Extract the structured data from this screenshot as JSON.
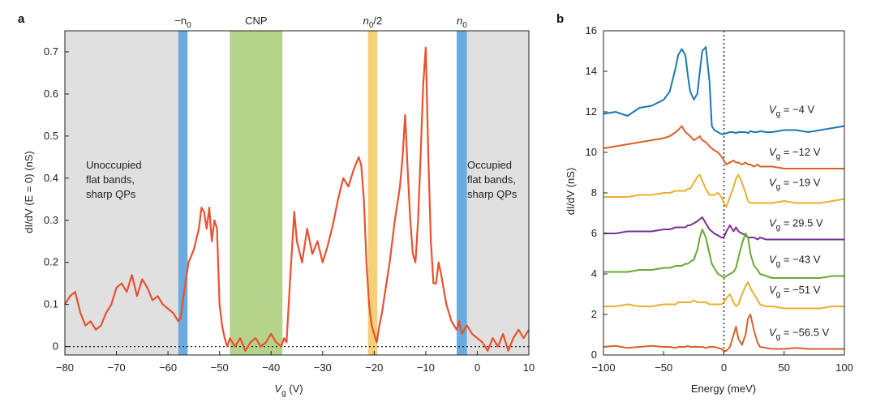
{
  "chart_data": [
    {
      "type": "line",
      "panel": "a",
      "xlabel_main": "V",
      "xlabel_sub": "g",
      "xlabel_unit": " (V)",
      "ylabel": "dI/dV (E = 0) (nS)",
      "xlim": [
        -80,
        10
      ],
      "ylim": [
        -0.02,
        0.75
      ],
      "xticks": [
        -80,
        -70,
        -60,
        -50,
        -40,
        -30,
        -20,
        -10,
        0,
        10
      ],
      "xtick_labels": [
        "−80",
        "−70",
        "−60",
        "−50",
        "−40",
        "−30",
        "−20",
        "−10",
        "0",
        "10"
      ],
      "yticks": [
        0,
        0.1,
        0.2,
        0.3,
        0.4,
        0.5,
        0.6,
        0.7
      ],
      "ytick_labels": [
        "0",
        "0.1",
        "0.2",
        "0.3",
        "0.4",
        "0.5",
        "0.6",
        "0.7"
      ],
      "colors": {
        "line": "#e8512f",
        "grey": "#e0e0e0",
        "blue": "#6aace0",
        "green": "#b5d28a",
        "orange": "#f5cf7a"
      },
      "regions": [
        {
          "name": "unoccupied",
          "x0": -80,
          "x1": -58,
          "color": "#e0e0e0"
        },
        {
          "name": "occupied",
          "x0": -2,
          "x1": 10,
          "color": "#e0e0e0"
        },
        {
          "name": "minus-n0",
          "x0": -58,
          "x1": -56.2,
          "color": "#6aace0"
        },
        {
          "name": "cnp",
          "x0": -48,
          "x1": -37.8,
          "color": "#b5d28a"
        },
        {
          "name": "half-n0",
          "x0": -21.2,
          "x1": -19.4,
          "color": "#f5cf7a"
        },
        {
          "name": "n0",
          "x0": -4,
          "x1": -2,
          "color": "#6aace0"
        }
      ],
      "band_labels": {
        "minus_n0_prefix": "−n",
        "minus_n0_sub": "0",
        "cnp": "CNP",
        "half_n0_main": "n",
        "half_n0_sub": "0",
        "half_n0_suffix": "/2",
        "n0_main": "n",
        "n0_sub": "0"
      },
      "annotations": {
        "left_line1": "Unoccupied",
        "left_line2": "flat bands,",
        "left_line3": "sharp QPs",
        "right_line1": "Occupied",
        "right_line2": "flat bands,",
        "right_line3": "sharp QPs"
      },
      "series_x": [
        -80,
        -79,
        -78,
        -77,
        -76,
        -75,
        -74,
        -73,
        -72,
        -71,
        -70,
        -69,
        -68,
        -67,
        -66,
        -65,
        -64,
        -63,
        -62,
        -61,
        -60,
        -59,
        -58,
        -57.5,
        -57,
        -56,
        -55,
        -54,
        -53.5,
        -53,
        -52.5,
        -52,
        -51.5,
        -51,
        -50.5,
        -50,
        -49.5,
        -49,
        -48.5,
        -48,
        -47,
        -46,
        -45,
        -44,
        -43,
        -42,
        -41,
        -40,
        -39,
        -38,
        -37.5,
        -37,
        -36.5,
        -36,
        -35.5,
        -35,
        -34,
        -33,
        -32,
        -31,
        -30,
        -29,
        -28,
        -27,
        -26,
        -25,
        -24,
        -23,
        -22.5,
        -22,
        -21.5,
        -21,
        -20.5,
        -20,
        -19.5,
        -19,
        -18.5,
        -18,
        -17,
        -16,
        -15,
        -14.5,
        -14,
        -13.5,
        -13,
        -12.5,
        -12,
        -11.5,
        -11,
        -10.5,
        -10,
        -9.5,
        -9,
        -8.5,
        -8,
        -7.5,
        -7,
        -6,
        -5,
        -4.5,
        -4,
        -3.5,
        -3,
        -2.5,
        -2,
        -1,
        0,
        1,
        2,
        3,
        4,
        5,
        6,
        7,
        8,
        9,
        10
      ],
      "series_y": [
        0.1,
        0.12,
        0.13,
        0.08,
        0.05,
        0.06,
        0.04,
        0.05,
        0.08,
        0.1,
        0.14,
        0.15,
        0.13,
        0.17,
        0.12,
        0.16,
        0.14,
        0.11,
        0.12,
        0.1,
        0.09,
        0.08,
        0.06,
        0.07,
        0.12,
        0.2,
        0.23,
        0.28,
        0.33,
        0.32,
        0.28,
        0.33,
        0.25,
        0.3,
        0.28,
        0.1,
        0.05,
        0.02,
        0.0,
        0.02,
        0.0,
        0.02,
        -0.01,
        0.01,
        0.02,
        0.0,
        0.01,
        0.03,
        0.01,
        0.0,
        0.02,
        0.01,
        0.12,
        0.22,
        0.32,
        0.25,
        0.2,
        0.28,
        0.22,
        0.25,
        0.2,
        0.24,
        0.29,
        0.35,
        0.4,
        0.38,
        0.42,
        0.45,
        0.43,
        0.35,
        0.2,
        0.1,
        0.05,
        0.03,
        0.01,
        0.05,
        0.08,
        0.12,
        0.2,
        0.3,
        0.38,
        0.45,
        0.55,
        0.42,
        0.3,
        0.22,
        0.2,
        0.3,
        0.45,
        0.62,
        0.71,
        0.45,
        0.25,
        0.15,
        0.15,
        0.2,
        0.17,
        0.1,
        0.06,
        0.05,
        0.04,
        0.06,
        0.03,
        0.04,
        0.05,
        0.03,
        0.02,
        0.01,
        -0.01,
        0.02,
        0.0,
        0.03,
        -0.01,
        0.02,
        0.04,
        0.02,
        0.04
      ]
    },
    {
      "type": "line",
      "panel": "b",
      "xlabel": "Energy (meV)",
      "ylabel": "dI/dV (nS)",
      "xlim": [
        -100,
        100
      ],
      "ylim": [
        0,
        16
      ],
      "xticks": [
        -100,
        -50,
        0,
        50,
        100
      ],
      "xtick_labels": [
        "−100",
        "−50",
        "0",
        "50",
        "100"
      ],
      "yticks": [
        0,
        2,
        4,
        6,
        8,
        10,
        12,
        14,
        16
      ],
      "ytick_labels": [
        "0",
        "2",
        "4",
        "6",
        "8",
        "10",
        "12",
        "14",
        "16"
      ],
      "energy_x": [
        -100,
        -90,
        -80,
        -70,
        -60,
        -50,
        -45,
        -40,
        -38,
        -35,
        -32,
        -30,
        -28,
        -25,
        -22,
        -20,
        -18,
        -15,
        -12,
        -10,
        -8,
        -5,
        -2,
        0,
        2,
        5,
        8,
        10,
        12,
        15,
        18,
        20,
        22,
        25,
        28,
        30,
        35,
        40,
        50,
        60,
        70,
        80,
        90,
        100
      ],
      "series": [
        {
          "name": "Vg = −4 V",
          "label_main": "V",
          "label_sub": "g",
          "label_val": " = −4 V",
          "color": "#1f77b4",
          "values": [
            11.9,
            12.0,
            11.8,
            12.2,
            12.3,
            12.6,
            13.0,
            14.2,
            14.8,
            15.1,
            14.8,
            13.8,
            13.0,
            12.6,
            12.9,
            14.0,
            15.0,
            15.2,
            13.5,
            11.3,
            11.1,
            11.0,
            10.9,
            10.9,
            10.95,
            11.0,
            11.0,
            10.95,
            11.0,
            11.0,
            11.0,
            10.95,
            11.05,
            11.0,
            11.0,
            11.05,
            11.0,
            11.0,
            11.1,
            11.1,
            11.0,
            11.1,
            11.2,
            11.3
          ]
        },
        {
          "name": "Vg = −12 V",
          "label_main": "V",
          "label_sub": "g",
          "label_val": " = −12 V",
          "color": "#d9602b",
          "values": [
            10.2,
            10.3,
            10.4,
            10.5,
            10.6,
            10.7,
            10.8,
            11.0,
            11.1,
            11.3,
            11.0,
            10.9,
            10.8,
            10.6,
            10.7,
            10.8,
            10.6,
            10.5,
            10.3,
            10.2,
            10.1,
            10.0,
            9.8,
            9.6,
            9.4,
            9.5,
            9.6,
            9.5,
            9.5,
            9.4,
            9.5,
            9.4,
            9.4,
            9.3,
            9.4,
            9.3,
            9.3,
            9.3,
            9.2,
            9.2,
            9.2,
            9.2,
            9.2,
            9.2
          ]
        },
        {
          "name": "Vg = −19 V",
          "label_main": "V",
          "label_sub": "g",
          "label_val": " = −19 V",
          "color": "#e8b030",
          "values": [
            7.8,
            7.8,
            7.8,
            7.9,
            7.9,
            8.0,
            8.0,
            8.1,
            8.1,
            8.1,
            8.1,
            8.2,
            8.2,
            8.5,
            8.8,
            8.9,
            8.6,
            8.2,
            7.9,
            7.9,
            7.9,
            8.0,
            7.8,
            7.5,
            7.3,
            7.8,
            8.3,
            8.7,
            8.9,
            8.5,
            8.0,
            7.6,
            7.5,
            7.5,
            7.5,
            7.5,
            7.5,
            7.5,
            7.6,
            7.5,
            7.5,
            7.5,
            7.6,
            7.7
          ]
        },
        {
          "name": "Vg = 29.5 V",
          "label_main": "V",
          "label_sub": "g",
          "label_val": " = 29.5 V",
          "color": "#7b3294",
          "values": [
            6.0,
            6.0,
            6.1,
            6.1,
            6.1,
            6.2,
            6.2,
            6.3,
            6.3,
            6.3,
            6.3,
            6.4,
            6.4,
            6.5,
            6.6,
            6.7,
            6.8,
            6.5,
            6.2,
            6.1,
            6.0,
            5.9,
            5.8,
            5.8,
            6.1,
            6.4,
            6.1,
            6.3,
            6.1,
            6.0,
            5.9,
            5.8,
            5.8,
            5.8,
            5.7,
            5.8,
            5.7,
            5.7,
            5.7,
            5.7,
            5.7,
            5.7,
            5.7,
            5.7
          ]
        },
        {
          "name": "Vg = −43 V",
          "label_main": "V",
          "label_sub": "g",
          "label_val": " = −43 V",
          "color": "#6aa935",
          "values": [
            4.1,
            4.1,
            4.1,
            4.2,
            4.2,
            4.3,
            4.3,
            4.4,
            4.4,
            4.4,
            4.5,
            4.5,
            4.6,
            4.7,
            5.2,
            5.8,
            6.2,
            5.8,
            5.0,
            4.5,
            4.3,
            4.0,
            3.9,
            3.8,
            3.9,
            4.0,
            4.1,
            4.3,
            4.8,
            5.5,
            6.0,
            5.8,
            5.0,
            4.4,
            4.2,
            4.0,
            3.9,
            3.8,
            3.8,
            3.8,
            3.8,
            3.8,
            3.9,
            3.9
          ]
        },
        {
          "name": "Vg = −51 V",
          "label_main": "V",
          "label_sub": "g",
          "label_val": " = −51 V",
          "color": "#e8b030",
          "values": [
            2.4,
            2.4,
            2.5,
            2.4,
            2.4,
            2.5,
            2.5,
            2.5,
            2.6,
            2.6,
            2.6,
            2.6,
            2.6,
            2.7,
            2.6,
            2.6,
            2.6,
            2.6,
            2.5,
            2.5,
            2.5,
            2.5,
            2.5,
            2.6,
            2.8,
            3.0,
            2.6,
            2.4,
            2.5,
            3.0,
            3.4,
            3.6,
            3.3,
            3.0,
            2.7,
            2.5,
            2.4,
            2.4,
            2.3,
            2.3,
            2.3,
            2.3,
            2.4,
            2.4
          ]
        },
        {
          "name": "Vg = −56.5 V",
          "label_main": "V",
          "label_sub": "g",
          "label_val": " = −56.5 V",
          "color": "#d9602b",
          "values": [
            0.4,
            0.45,
            0.35,
            0.4,
            0.45,
            0.4,
            0.4,
            0.35,
            0.4,
            0.4,
            0.4,
            0.45,
            0.4,
            0.4,
            0.4,
            0.4,
            0.4,
            0.35,
            0.4,
            0.4,
            0.4,
            0.35,
            0.3,
            0.2,
            0.2,
            0.4,
            1.0,
            1.4,
            0.8,
            0.5,
            1.0,
            1.8,
            2.0,
            1.2,
            0.6,
            0.4,
            0.35,
            0.3,
            0.3,
            0.35,
            0.3,
            0.3,
            0.3,
            0.3
          ]
        }
      ]
    }
  ]
}
